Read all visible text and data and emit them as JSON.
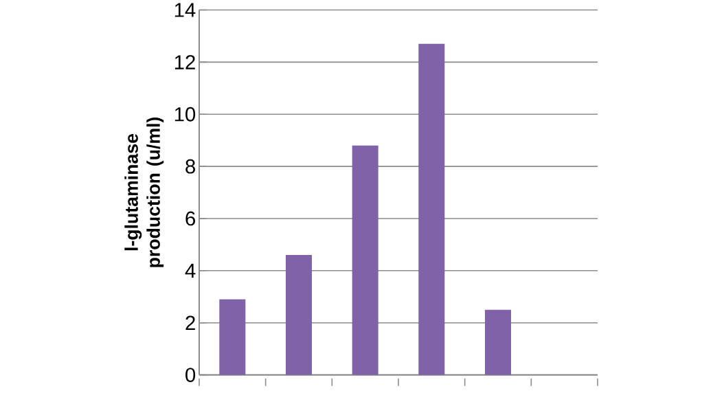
{
  "chart_data": {
    "type": "bar",
    "ylabel": "l-glutaminase  production (u/ml)",
    "categories": [
      null,
      null,
      null,
      null,
      null,
      null
    ],
    "values": [
      2.9,
      4.6,
      8.8,
      12.7,
      2.5,
      null
    ],
    "color": "#7f62a7",
    "ylim": [
      0,
      14
    ],
    "yticks": [
      0,
      2,
      4,
      6,
      8,
      10,
      12,
      14
    ],
    "grid": "y",
    "tick_labels": "y"
  }
}
